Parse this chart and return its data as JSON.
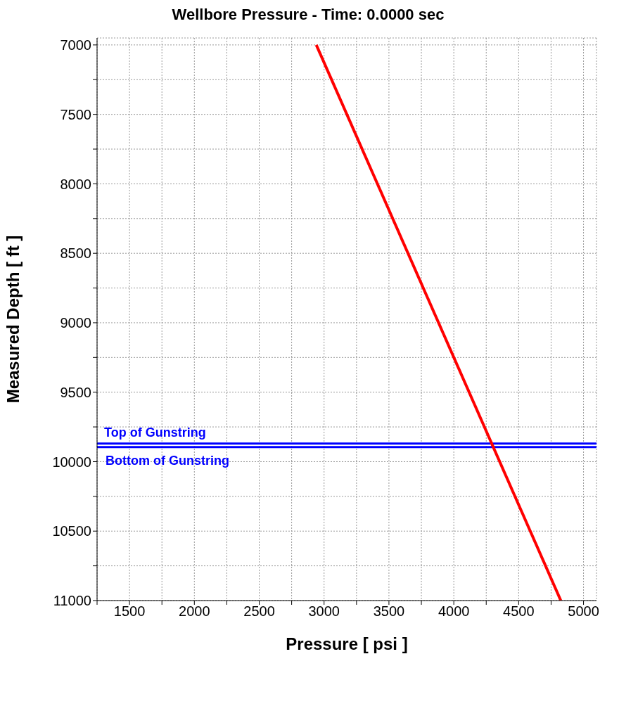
{
  "chart_data": {
    "type": "line",
    "title": "Wellbore Pressure - Time: 0.0000 sec",
    "xlabel": "Pressure [ psi ]",
    "ylabel": "Measured Depth [ ft ]",
    "x": [
      2940,
      4825
    ],
    "series": [
      {
        "color": "#ff0000",
        "values": [
          7000,
          11000
        ]
      }
    ],
    "xlim": [
      1250,
      5100
    ],
    "xticks": [
      {
        "value": 1250,
        "label": null
      },
      1500,
      {
        "value": 1750,
        "label": null
      },
      2000,
      {
        "value": 2250,
        "label": null
      },
      2500,
      {
        "value": 2750,
        "label": null
      },
      3000,
      {
        "value": 3250,
        "label": null
      },
      3500,
      {
        "value": 3750,
        "label": null
      },
      4000,
      {
        "value": 4250,
        "label": null
      },
      4500,
      {
        "value": 4750,
        "label": null
      },
      5000
    ],
    "ylim": [
      11000,
      6950
    ],
    "yticks": [
      7000,
      {
        "value": 7250,
        "label": null
      },
      7500,
      {
        "value": 7750,
        "label": null
      },
      8000,
      {
        "value": 8250,
        "label": null
      },
      8500,
      {
        "value": 8750,
        "label": null
      },
      9000,
      {
        "value": 9250,
        "label": null
      },
      9500,
      {
        "value": 9750,
        "label": null
      },
      10000,
      {
        "value": 10250,
        "label": null
      },
      10500,
      {
        "value": 10750,
        "label": null
      },
      11000
    ],
    "ref_lines": [
      {
        "axis": "y",
        "value": 9870,
        "label": "Top of Gunstring",
        "color": "#0000ff"
      },
      {
        "axis": "y",
        "value": 9895,
        "label": "Bottom of Gunstring",
        "color": "#0000ff"
      }
    ],
    "grid": true,
    "marker": "none",
    "line_style": "solid"
  }
}
